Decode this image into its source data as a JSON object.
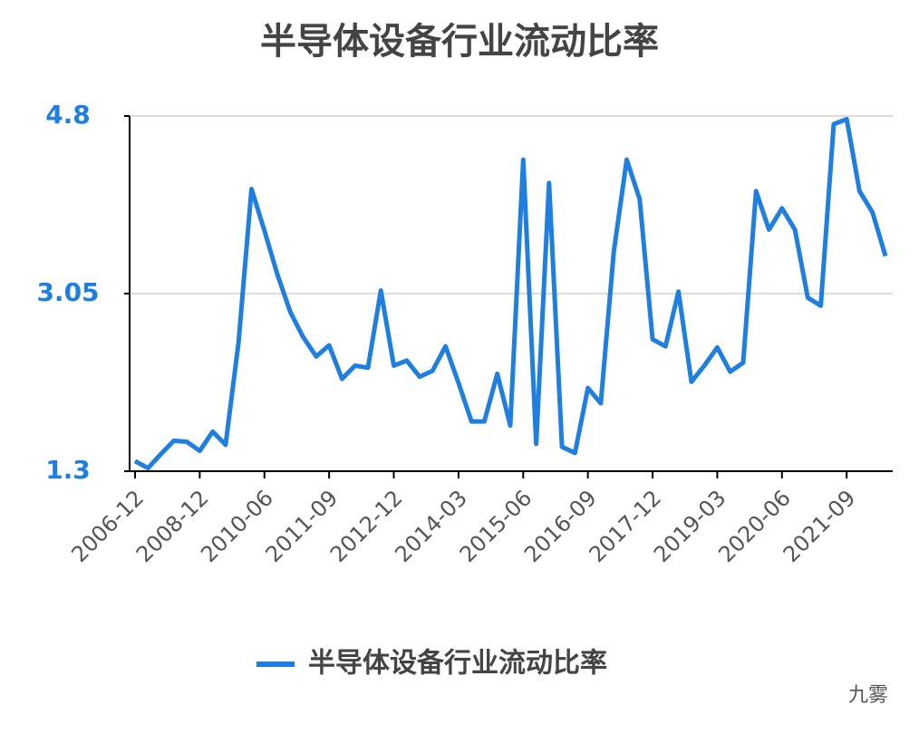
{
  "chart_data": {
    "type": "line",
    "title": "半导体设备行业流动比率",
    "categories": [
      "2006-12",
      null,
      null,
      null,
      null,
      "2008-12",
      null,
      null,
      null,
      null,
      "2010-06",
      null,
      null,
      null,
      null,
      "2011-09",
      null,
      null,
      null,
      null,
      "2012-12",
      null,
      null,
      null,
      null,
      "2014-03",
      null,
      null,
      null,
      null,
      "2015-06",
      null,
      null,
      null,
      null,
      "2016-09",
      null,
      null,
      null,
      null,
      "2017-12",
      null,
      null,
      null,
      null,
      "2019-03",
      null,
      null,
      null,
      null,
      "2020-06",
      null,
      null,
      null,
      null,
      "2021-09",
      null,
      null,
      null
    ],
    "series": [
      {
        "name": "半导体设备行业流动比率",
        "color": "#1e7fe0",
        "values": [
          1.4,
          1.33,
          1.47,
          1.6,
          1.59,
          1.5,
          1.69,
          1.56,
          2.57,
          4.08,
          3.67,
          3.24,
          2.87,
          2.62,
          2.43,
          2.54,
          2.21,
          2.34,
          2.32,
          3.08,
          2.34,
          2.39,
          2.23,
          2.29,
          2.53,
          2.17,
          1.79,
          1.79,
          2.26,
          1.75,
          4.37,
          1.57,
          4.14,
          1.54,
          1.48,
          2.12,
          1.97,
          3.46,
          4.37,
          3.98,
          2.6,
          2.53,
          3.07,
          2.18,
          2.34,
          2.52,
          2.28,
          2.37,
          4.06,
          3.68,
          3.89,
          3.68,
          3.01,
          2.93,
          4.72,
          4.77,
          4.06,
          3.85,
          3.42
        ]
      }
    ],
    "ylim": [
      1.3,
      4.8
    ],
    "yticks": [
      1.3,
      3.05,
      4.8
    ],
    "grid": true,
    "legend": "bottom"
  },
  "watermark": "九雾"
}
